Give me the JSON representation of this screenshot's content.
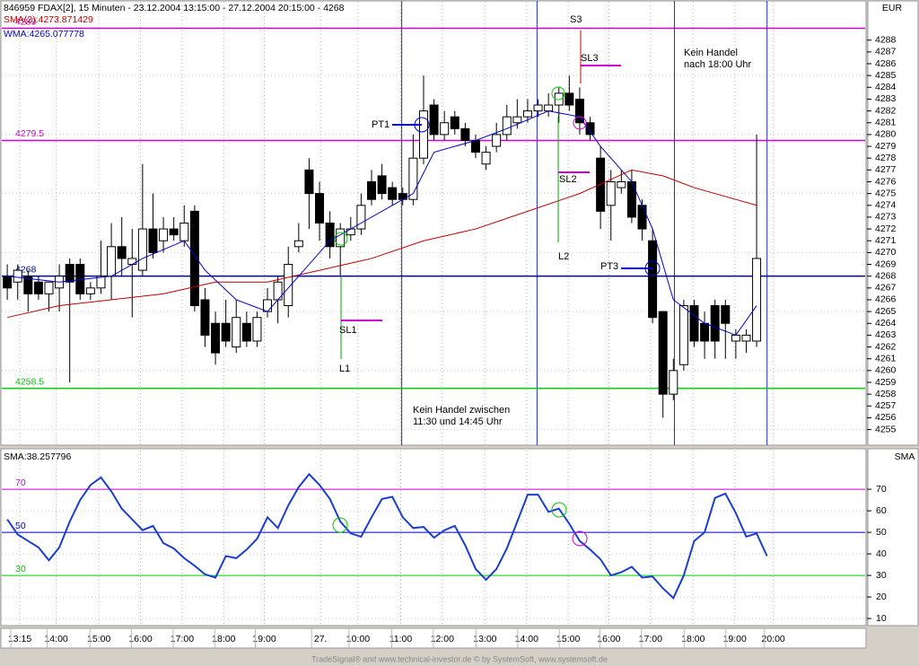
{
  "header": {
    "title": "846959  FDAX[2], 15 Minuten - 23.12.2004 13:15:00 - 27.12.2004 20:15:00 - 4268"
  },
  "chart_data": [
    {
      "type": "candlestick",
      "axis_label": "EUR",
      "x": [
        0,
        1,
        2,
        3,
        4,
        5,
        6,
        7,
        8,
        9,
        10,
        11,
        12,
        13,
        14,
        15,
        16,
        17,
        18,
        19,
        20,
        21,
        22,
        23,
        24,
        25,
        26,
        27,
        28,
        29,
        30,
        31,
        32,
        33,
        34,
        35,
        36,
        37,
        38,
        39,
        40,
        41,
        42,
        43,
        44,
        45,
        46,
        47,
        48,
        49,
        50,
        51,
        52,
        53,
        54,
        55,
        56,
        57,
        58,
        59,
        60,
        61,
        62,
        63,
        64,
        65,
        66,
        67,
        68,
        69,
        70,
        71,
        72
      ],
      "open": [
        4268,
        4267.5,
        4268,
        4267.5,
        4266.5,
        4267,
        4269,
        4269,
        4266.5,
        4267,
        4268,
        4270.5,
        4269,
        4268.5,
        4272,
        4271,
        4272,
        4271,
        4273.5,
        4266,
        4264,
        4264,
        4262,
        4264,
        4262.5,
        4265,
        4266,
        4265.5,
        4270.5,
        4277,
        4275,
        4272.5,
        4270.5,
        4271.5,
        4272,
        4276,
        4276.5,
        4275.5,
        4275,
        4274.5,
        4278,
        4282.5,
        4280,
        4281.5,
        4280.5,
        4279.5,
        4277.5,
        4279,
        4280,
        4281,
        4281.5,
        4282,
        4282,
        4282.5,
        4283.5,
        4283,
        4281,
        4278,
        4274,
        4275.5,
        4276,
        4274,
        4271,
        4265,
        4258,
        4260.5,
        4265.5,
        4264,
        4265.5,
        4265.5,
        4262.5,
        4262.5,
        4262.5
      ],
      "high": [
        4269,
        4269,
        4268.5,
        4268,
        4267.5,
        4269,
        4269.5,
        4269.5,
        4267.5,
        4271,
        4272.5,
        4273,
        4272,
        4277.5,
        4275,
        4273,
        4273,
        4274,
        4274,
        4267,
        4265,
        4266,
        4266,
        4265,
        4265,
        4267,
        4268,
        4270.5,
        4272.5,
        4278,
        4276,
        4273.5,
        4272.5,
        4273,
        4275,
        4277,
        4277.5,
        4276,
        4275.5,
        4280,
        4285,
        4283,
        4282,
        4282,
        4281,
        4280,
        4279,
        4281,
        4282.5,
        4283,
        4283,
        4283,
        4283.5,
        4284,
        4285,
        4284,
        4281.5,
        4279,
        4277,
        4277,
        4277,
        4274.5,
        4272,
        4265,
        4261,
        4266,
        4266,
        4265,
        4266,
        4266,
        4263.5,
        4263.5,
        4280
      ],
      "low": [
        4266,
        4266,
        4265,
        4266,
        4265,
        4265,
        4259,
        4266,
        4266,
        4266.5,
        4266,
        4268,
        4264.5,
        4268,
        4269.5,
        4270,
        4271,
        4270.5,
        4265,
        4262,
        4260.5,
        4262,
        4261.5,
        4262,
        4262,
        4264.5,
        4264,
        4264.5,
        4270,
        4272,
        4271,
        4269.5,
        4268,
        4271,
        4271.5,
        4274,
        4274.5,
        4274,
        4274,
        4274,
        4277.5,
        4279.5,
        4279.5,
        4280,
        4279,
        4278,
        4277,
        4278.5,
        4279.5,
        4280.5,
        4281,
        4281.5,
        4281.5,
        4281,
        4282,
        4280,
        4279.5,
        4272,
        4271,
        4275,
        4272.5,
        4271,
        4264,
        4256,
        4257.5,
        4260,
        4262,
        4261,
        4261,
        4261,
        4261,
        4261.5,
        4262
      ],
      "close": [
        4267,
        4268.5,
        4266.5,
        4266.5,
        4267.5,
        4268,
        4267.5,
        4266.5,
        4267,
        4268,
        4270.5,
        4269.5,
        4269.5,
        4272,
        4270,
        4272,
        4271.5,
        4272.5,
        4265.5,
        4263,
        4261.5,
        4262.5,
        4264.5,
        4262.5,
        4264.5,
        4266,
        4267.5,
        4269,
        4271,
        4275,
        4272.5,
        4270.5,
        4272,
        4272,
        4274,
        4274.5,
        4275,
        4274.5,
        4274.5,
        4278,
        4282,
        4280,
        4281,
        4280.5,
        4279.5,
        4278.5,
        4278.5,
        4280,
        4281.5,
        4281.5,
        4282,
        4282.5,
        4282.5,
        4283.5,
        4282.5,
        4281,
        4280,
        4273.5,
        4276,
        4276,
        4273,
        4272,
        4264.5,
        4258,
        4260,
        4265.5,
        4262.5,
        4262.5,
        4262.5,
        4264,
        4263,
        4263,
        4269.5
      ],
      "up_color": "#ffffff",
      "down_color": "#000000",
      "series": [
        {
          "label": "SMA(2):4273.871429",
          "color": "#c00000",
          "x": [
            0,
            5,
            10,
            15,
            20,
            25,
            30,
            35,
            40,
            45,
            50,
            55,
            60,
            63,
            66,
            70,
            72
          ],
          "values": [
            4264.5,
            4265.5,
            4266,
            4266.5,
            4267.5,
            4267.5,
            4268.5,
            4269.5,
            4271,
            4272,
            4273.5,
            4275,
            4277,
            4276.5,
            4275.5,
            4274.5,
            4274
          ]
        },
        {
          "label": "WMA:4265.077778",
          "color": "#0000cc",
          "x": [
            0,
            5,
            10,
            13,
            17,
            19,
            22,
            25,
            28,
            31,
            34,
            37,
            39,
            41,
            45,
            48,
            52,
            55,
            57,
            60,
            62,
            64,
            67,
            70,
            72
          ],
          "values": [
            4268,
            4267.5,
            4268,
            4269.5,
            4271,
            4268.5,
            4266,
            4265,
            4268,
            4271,
            4272.5,
            4274,
            4275,
            4278.5,
            4279.5,
            4280.5,
            4282,
            4281.5,
            4279,
            4276,
            4272,
            4266,
            4264,
            4263,
            4265.5
          ]
        }
      ],
      "hlines": [
        {
          "value": 4289,
          "label": "4289",
          "color": "#d000d0"
        },
        {
          "value": 4279.5,
          "label": "4279.5",
          "color": "#d000d0"
        },
        {
          "value": 4268,
          "label": "4268",
          "color": "#0000aa"
        },
        {
          "value": 4258.5,
          "label": "4258.5",
          "color": "#00cc00"
        }
      ],
      "vlines": [
        37.9,
        50.9,
        64.1,
        73.0
      ],
      "vline_color": "#2030b0",
      "xlim": [
        -0.7,
        82.6
      ],
      "xticks": [
        {
          "value": 1.2,
          "label": "13:15"
        },
        {
          "value": 4.7,
          "label": "14:00"
        },
        {
          "value": 8.8,
          "label": "15:00"
        },
        {
          "value": 12.8,
          "label": "16:00"
        },
        {
          "value": 16.8,
          "label": "17:00"
        },
        {
          "value": 20.8,
          "label": "18:00"
        },
        {
          "value": 24.7,
          "label": "19:00"
        },
        {
          "value": 30.1,
          "label": "27."
        },
        {
          "value": 33.7,
          "label": "10:00"
        },
        {
          "value": 37.8,
          "label": "11:00"
        },
        {
          "value": 41.8,
          "label": "12:00"
        },
        {
          "value": 45.9,
          "label": "13:00"
        },
        {
          "value": 49.9,
          "label": "14:00"
        },
        {
          "value": 53.9,
          "label": "15:00"
        },
        {
          "value": 57.8,
          "label": "16:00"
        },
        {
          "value": 61.8,
          "label": "17:00"
        },
        {
          "value": 65.9,
          "label": "18:00"
        },
        {
          "value": 69.9,
          "label": "19:00"
        },
        {
          "value": 73.6,
          "label": "20:00"
        }
      ],
      "ylim": [
        4253.6,
        4291.4
      ],
      "yticks": [
        4255,
        4256,
        4257,
        4258,
        4259,
        4260,
        4261,
        4262,
        4263,
        4264,
        4265,
        4266,
        4267,
        4268,
        4269,
        4270,
        4271,
        4272,
        4273,
        4274,
        4275,
        4276,
        4277,
        4278,
        4279,
        4280,
        4281,
        4282,
        4283,
        4284,
        4285,
        4286,
        4287,
        4288
      ],
      "grid": true,
      "annotations": {
        "pt1": "PT1",
        "sl1": "SL1",
        "l1": "L1",
        "s3": "S3",
        "sl3": "SL3",
        "sl2": "SL2",
        "l2": "L2",
        "pt3": "PT3",
        "note1": [
          "Kein Handel zwischen",
          "11:30 und 14:45 Uhr"
        ],
        "note2": [
          "Kein Handel",
          "nach 18:00 Uhr"
        ]
      }
    },
    {
      "type": "line",
      "axis_label": "SMA",
      "label": "SMA:38.257796",
      "color": "#1a3fd0",
      "x": [
        0,
        1,
        2,
        3,
        4,
        5,
        6,
        7,
        8,
        9,
        10,
        11,
        12,
        13,
        14,
        15,
        16,
        17,
        18,
        19,
        20,
        21,
        22,
        23,
        24,
        25,
        26,
        27,
        28,
        29,
        30,
        31,
        32,
        33,
        34,
        35,
        36,
        37,
        38,
        39,
        40,
        41,
        42,
        43,
        44,
        45,
        46,
        47,
        48,
        49,
        50,
        51,
        52,
        53,
        54,
        55,
        56,
        57,
        58,
        59,
        60,
        61,
        62,
        63,
        64,
        65,
        66,
        67,
        68,
        69,
        70,
        71,
        72,
        73
      ],
      "values": [
        56,
        49,
        46,
        43,
        37,
        43,
        55,
        65,
        72,
        75.5,
        69,
        61,
        56,
        51,
        53,
        45,
        42.5,
        38,
        34.5,
        30.5,
        29,
        39,
        38,
        42,
        47,
        57,
        52,
        62.5,
        71,
        77,
        72,
        65.5,
        55,
        49.5,
        48,
        57,
        65.5,
        66.5,
        57,
        52,
        52.5,
        47.5,
        51,
        53,
        44,
        33,
        28,
        33,
        42.5,
        55,
        67.5,
        67.5,
        59.5,
        61,
        54,
        46,
        42,
        37.5,
        30,
        31.5,
        34,
        29,
        29.5,
        24,
        19.5,
        30,
        46,
        50,
        66,
        68,
        59,
        48,
        49.5,
        39
      ],
      "hlines": [
        {
          "value": 70,
          "label": "70",
          "color": "#d000d0"
        },
        {
          "value": 50,
          "label": "50",
          "color": "#0000cc"
        },
        {
          "value": 30,
          "label": "30",
          "color": "#00cc00"
        }
      ],
      "ylim": [
        6.7,
        88.8
      ],
      "yticks": [
        10,
        20,
        30,
        40,
        50,
        60,
        70
      ],
      "grid": true
    }
  ],
  "footer": "TradeSignal® and www.technical-investor.de © by SystemSoft, www.systemsoft.de"
}
